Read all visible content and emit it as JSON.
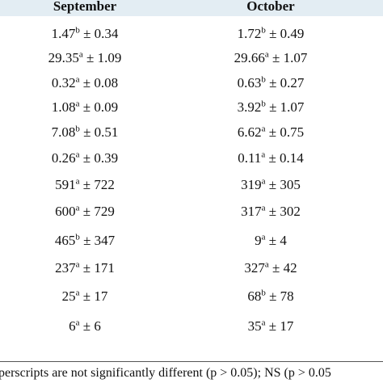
{
  "table": {
    "header": [
      "September",
      "October"
    ],
    "rows": [
      [
        {
          "main": "1.47",
          "sup": "b",
          "rest": " ± 0.34"
        },
        {
          "main": "1.72",
          "sup": "b",
          "rest": " ± 0.49"
        }
      ],
      [
        {
          "main": "29.35",
          "sup": "a",
          "rest": " ± 1.09"
        },
        {
          "main": "29.66",
          "sup": "a",
          "rest": " ± 1.07"
        }
      ],
      [
        {
          "main": "0.32",
          "sup": "a",
          "rest": " ± 0.08"
        },
        {
          "main": "0.63",
          "sup": "b",
          "rest": " ± 0.27"
        }
      ],
      [
        {
          "main": "1.08",
          "sup": "a",
          "rest": " ± 0.09"
        },
        {
          "main": "3.92",
          "sup": "b",
          "rest": " ± 1.07"
        }
      ],
      [
        {
          "main": "7.08",
          "sup": "b",
          "rest": " ± 0.51"
        },
        {
          "main": "6.62",
          "sup": "a",
          "rest": " ± 0.75"
        }
      ],
      [
        {
          "main": "0.26",
          "sup": "a",
          "rest": " ± 0.39"
        },
        {
          "main": "0.11",
          "sup": "a",
          "rest": " ± 0.14"
        }
      ],
      [
        {
          "main": "591",
          "sup": "a",
          "rest": " ± 722"
        },
        {
          "main": "319",
          "sup": "a",
          "rest": " ± 305"
        }
      ],
      [
        {
          "main": "600",
          "sup": "a",
          "rest": " ± 729"
        },
        {
          "main": "317",
          "sup": "a",
          "rest": " ± 302"
        }
      ],
      [
        {
          "main": "465",
          "sup": "b",
          "rest": " ± 347"
        },
        {
          "main": "9",
          "sup": "a",
          "rest": " ± 4"
        }
      ],
      [
        {
          "main": "237",
          "sup": "a",
          "rest": " ± 171"
        },
        {
          "main": "327",
          "sup": "a",
          "rest": " ± 42"
        }
      ],
      [
        {
          "main": "25",
          "sup": "a",
          "rest": " ± 17"
        },
        {
          "main": "68",
          "sup": "b",
          "rest": " ± 78"
        }
      ],
      [
        {
          "main": "6",
          "sup": "a",
          "rest": " ± 6"
        },
        {
          "main": "35",
          "sup": "a",
          "rest": " ± 17"
        }
      ]
    ],
    "footnote": "perscripts are not significantly different (p > 0.05); NS (p > 0.05"
  }
}
